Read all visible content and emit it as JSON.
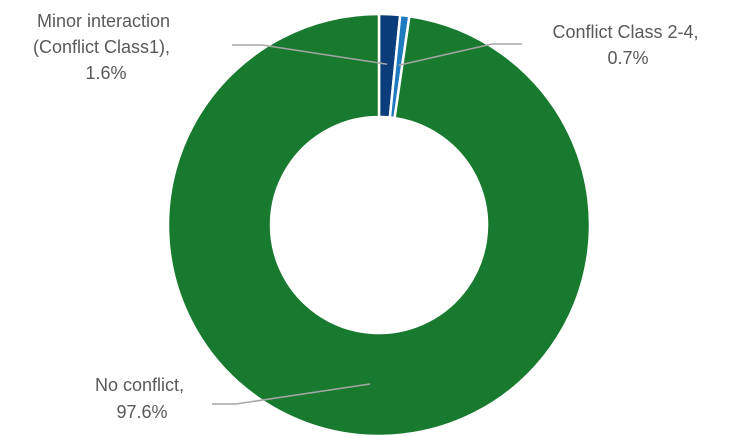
{
  "chart_data": {
    "type": "donut",
    "slices": [
      {
        "label_lines": [
          "Minor interaction",
          "(Conflict  Class1),",
          "1.6%"
        ],
        "name": "Minor interaction (Conflict Class1)",
        "value": 1.6,
        "color": "#0b3d7a"
      },
      {
        "label_lines": [
          "Conflict Class 2-4,",
          "0.7%"
        ],
        "name": "Conflict Class 2-4",
        "value": 0.7,
        "color": "#1f7ac0"
      },
      {
        "label_lines": [
          "No conflict,",
          "97.6%"
        ],
        "name": "No conflict",
        "value": 97.6,
        "color": "#187a2f"
      }
    ],
    "start_angle_deg": 0,
    "direction": "clockwise",
    "legend": "none",
    "leader_line_color": "#a6a6a6"
  }
}
